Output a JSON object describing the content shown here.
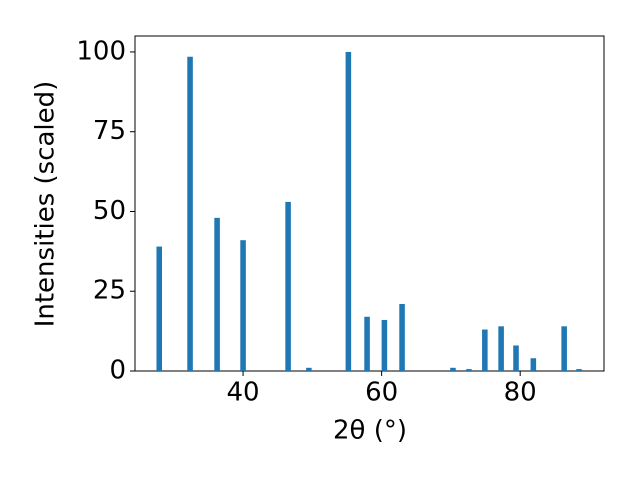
{
  "chart_data": {
    "type": "bar",
    "xlabel": "2θ (°)",
    "ylabel": "Intensities (scaled)",
    "x": [
      27.9,
      32.35,
      36.25,
      40.0,
      46.5,
      49.5,
      55.2,
      57.9,
      60.4,
      62.95,
      70.3,
      72.6,
      74.9,
      77.25,
      79.4,
      81.9,
      86.35,
      88.5
    ],
    "values": [
      39,
      98.5,
      48,
      41,
      53,
      1,
      100,
      17,
      16,
      21,
      1,
      0.6,
      13,
      14,
      8,
      4,
      14,
      0.6
    ],
    "color": "#1f77b4",
    "bar_width": 0.8,
    "xlim": [
      24.4,
      92.1
    ],
    "ylim": [
      0,
      105
    ],
    "xticks": [
      40,
      60,
      80
    ],
    "yticks": [
      0,
      25,
      50,
      75,
      100
    ]
  }
}
